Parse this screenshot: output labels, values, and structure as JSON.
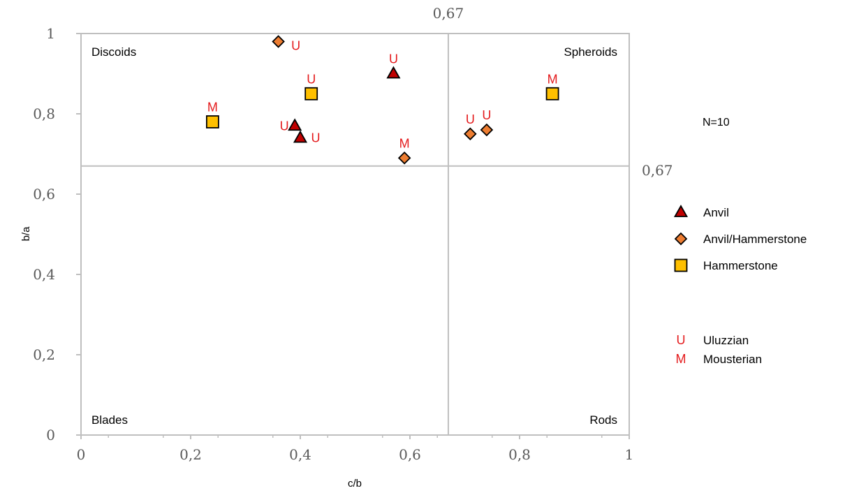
{
  "chart_data": {
    "type": "scatter",
    "title": "",
    "xlabel": "c/b",
    "ylabel": "b/a",
    "xlim": [
      0,
      1
    ],
    "ylim": [
      0,
      1
    ],
    "x_ticks": [
      "0",
      "0,2",
      "0,4",
      "0,6",
      "0,8",
      "1"
    ],
    "y_ticks": [
      "0",
      "0,2",
      "0,4",
      "0,6",
      "0,8",
      "1"
    ],
    "reference_lines": {
      "x": 0.67,
      "y": 0.67,
      "x_label": "0,67",
      "y_label": "0,67"
    },
    "quadrants": {
      "top_left": "Discoids",
      "top_right": "Spheroids",
      "bottom_left": "Blades",
      "bottom_right": "Rods"
    },
    "annotation": "N=10",
    "grid": false,
    "legend_position": "right",
    "series": [
      {
        "name": "Anvil",
        "marker": "triangle",
        "color": "#c00000",
        "points": [
          {
            "x": 0.57,
            "y": 0.9,
            "culture": "U"
          },
          {
            "x": 0.39,
            "y": 0.77,
            "culture": "U"
          },
          {
            "x": 0.4,
            "y": 0.74,
            "culture": "U"
          }
        ]
      },
      {
        "name": "Anvil/Hammerstone",
        "marker": "diamond",
        "color": "#ed7d31",
        "points": [
          {
            "x": 0.36,
            "y": 0.98,
            "culture": "U"
          },
          {
            "x": 0.59,
            "y": 0.69,
            "culture": "M"
          },
          {
            "x": 0.71,
            "y": 0.75,
            "culture": "U"
          },
          {
            "x": 0.74,
            "y": 0.76,
            "culture": "U"
          }
        ]
      },
      {
        "name": "Hammerstone",
        "marker": "square",
        "color": "#ffc000",
        "points": [
          {
            "x": 0.24,
            "y": 0.78,
            "culture": "M"
          },
          {
            "x": 0.42,
            "y": 0.85,
            "culture": "U"
          },
          {
            "x": 0.86,
            "y": 0.85,
            "culture": "M"
          }
        ]
      }
    ],
    "culture_legend": [
      {
        "code": "U",
        "name": "Uluzzian"
      },
      {
        "code": "M",
        "name": "Mousterian"
      }
    ]
  }
}
